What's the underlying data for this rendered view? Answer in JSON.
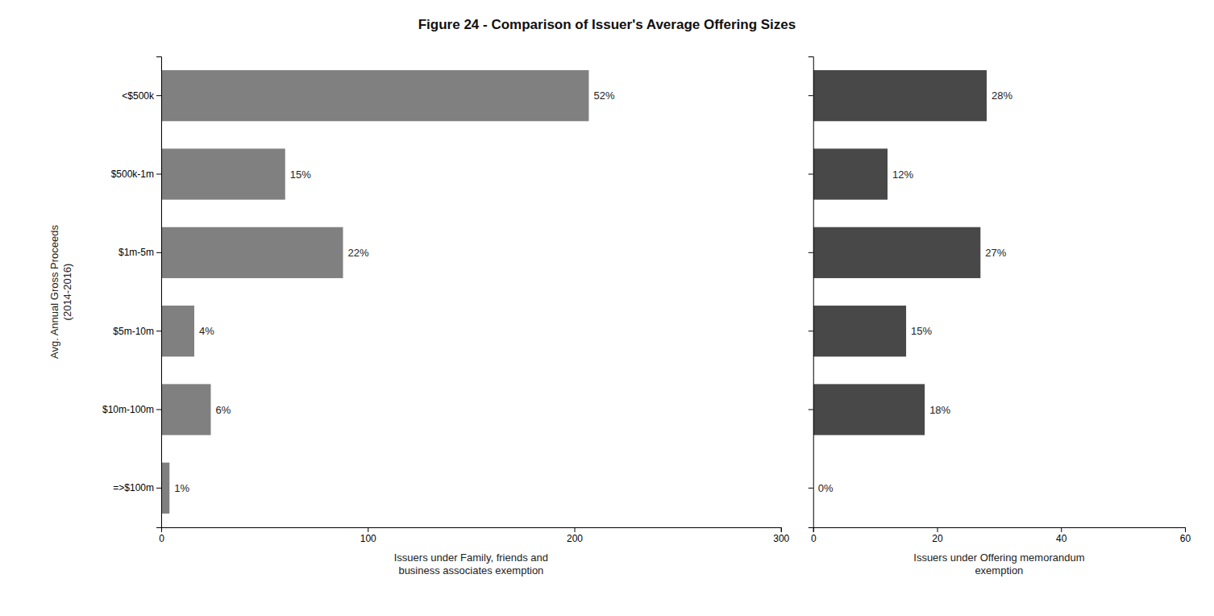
{
  "chart_data": [
    {
      "type": "bar",
      "orientation": "horizontal",
      "data_labels": true,
      "title": "Figure 24 - Comparison of Issuer's Average Offering Sizes",
      "categories": [
        "<$500k",
        "$500k-1m",
        "$1m-5m",
        "$5m-10m",
        "$10m-100m",
        "=>$100m"
      ],
      "values": [
        207,
        60,
        88,
        16,
        24,
        4
      ],
      "value_labels": [
        "52%",
        "15%",
        "22%",
        "4%",
        "6%",
        "1%"
      ],
      "color": "#808080",
      "xlabel": "Issuers under Family, friends and\nbusiness associates exemption",
      "ylabel": "Avg. Annual Gross Proceeds\n(2014-2016)",
      "xlim": [
        0,
        300
      ],
      "xticks": [
        0,
        100,
        200,
        300
      ]
    },
    {
      "type": "bar",
      "orientation": "horizontal",
      "data_labels": true,
      "categories": [
        null,
        null,
        null,
        null,
        null,
        null
      ],
      "values": [
        28,
        12,
        27,
        15,
        18,
        0
      ],
      "value_labels": [
        "28%",
        "12%",
        "27%",
        "15%",
        "18%",
        "0%"
      ],
      "color": "#484848",
      "xlabel": "Issuers under Offering memorandum\nexemption",
      "xlim": [
        0,
        60
      ],
      "xticks": [
        0,
        20,
        40,
        60
      ]
    }
  ]
}
